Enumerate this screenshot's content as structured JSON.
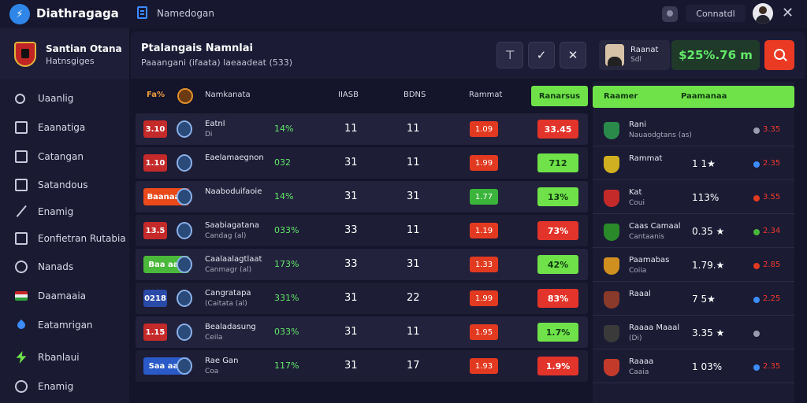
{
  "topbar": {
    "app_title": "Diathragaga",
    "name_label": "Namedogan",
    "connect_label": "Connatdl",
    "close_glyph": "✕"
  },
  "sidebar": {
    "brand_line1": "Santian Otana",
    "brand_line2": "Hatnsgiges",
    "items": [
      {
        "label": "Uaanlig",
        "icon": "search-icon"
      },
      {
        "label": "Eaanatiga",
        "icon": "tv-icon"
      },
      {
        "label": "Catangan",
        "icon": "monitor-icon"
      },
      {
        "label": "Satandous",
        "icon": "bag-icon"
      },
      {
        "label": "Enamig",
        "icon": "pen-icon"
      },
      {
        "label": "Eonfietran Rutabia",
        "icon": "calendar-icon"
      },
      {
        "label": "Nanads",
        "icon": "circle-icon"
      },
      {
        "label": "Daamaaia",
        "icon": "flag-icon"
      },
      {
        "label": "Eatamrigan",
        "icon": "rocket-icon"
      },
      {
        "label": "Rbanlaui",
        "icon": "bolt-icon"
      },
      {
        "label": "Enamig",
        "icon": "person-icon"
      }
    ]
  },
  "header": {
    "title": "Ptalangais Namnlai",
    "subtitle": "Paaangani (ifaata) laeaadeat (533)",
    "tool1": "⊤",
    "tool2": "✓",
    "tool3": "✕",
    "user_name": "Raanat",
    "user_sub": "Sdl",
    "balance": "$25%.76 m"
  },
  "table": {
    "col_rank": "Fa%",
    "col_team": "Namkanata",
    "col_a": "IIASB",
    "col_b": "BDNS",
    "col_c": "Rammat",
    "col_d": "Ranarsus",
    "rows": [
      {
        "chip": "3.10",
        "chip_color": "#c42a2a",
        "team": "Eatnl",
        "team2": "Di",
        "pct": "14%",
        "a": "11",
        "b": "11",
        "odd": "1.09",
        "odd_color": "#e23a20",
        "big": "33.45",
        "big_color": "#e2342a"
      },
      {
        "chip": "1.10",
        "chip_color": "#c42a2a",
        "team": "Eaelamaegnon",
        "team2": "",
        "pct": "032",
        "a": "31",
        "b": "11",
        "odd": "1.99",
        "odd_color": "#e23a20",
        "big": "712",
        "big_color": "#6fe24a"
      },
      {
        "chip": "Baanaan",
        "chip_color": "#ea4a1a",
        "team": "Naaboduifaoie",
        "team2": "",
        "pct": "14%",
        "a": "31",
        "b": "31",
        "odd": "1.77",
        "odd_color": "#3ab43a",
        "big": "13%",
        "big_color": "#6fe24a"
      },
      {
        "chip": "13.5",
        "chip_color": "#c42a2a",
        "team": "Saabiagatana",
        "team2": "Candag (al)",
        "pct": "033%",
        "a": "33",
        "b": "11",
        "odd": "1.19",
        "odd_color": "#e23a20",
        "big": "73%",
        "big_color": "#e2342a"
      },
      {
        "chip": "Baa aan",
        "chip_color": "#4ab83a",
        "team": "Caalaalagtlaat",
        "team2": "Canmagr (al)",
        "pct": "173%",
        "a": "33",
        "b": "31",
        "odd": "1.33",
        "odd_color": "#e23a20",
        "big": "42%",
        "big_color": "#6fe24a"
      },
      {
        "chip": "0218",
        "chip_color": "#2a4aa8",
        "team": "Cangratapa",
        "team2": "(Caitata (al)",
        "pct": "331%",
        "a": "31",
        "b": "22",
        "odd": "1.99",
        "odd_color": "#e23a20",
        "big": "83%",
        "big_color": "#e2342a"
      },
      {
        "chip": "1.15",
        "chip_color": "#c42a2a",
        "team": "Bealadasung",
        "team2": "Ceila",
        "pct": "033%",
        "a": "31",
        "b": "11",
        "odd": "1.95",
        "odd_color": "#e23a20",
        "big": "1.7%",
        "big_color": "#6fe24a"
      },
      {
        "chip": "Saa aan",
        "chip_color": "#2a5ac8",
        "team": "Rae Gan",
        "team2": "Coa",
        "pct": "117%",
        "a": "31",
        "b": "17",
        "odd": "1.93",
        "odd_color": "#e23a20",
        "big": "1.9%",
        "big_color": "#e2342a"
      }
    ]
  },
  "right_panel": {
    "h1": "Raamer",
    "h2": "Paamanaa",
    "rows": [
      {
        "name": "Rani",
        "sub": "Nauaodgtans (as)",
        "val": "",
        "odd": "3.35",
        "dot_color": "#9a9ab0",
        "logo_color": "#2a8a4a"
      },
      {
        "name": "Rammat",
        "sub": "",
        "val": "1 1★",
        "odd": "2.35",
        "dot_color": "#3c8cff",
        "logo_color": "#d0b020"
      },
      {
        "name": "Kat",
        "sub": "Coui",
        "val": "113%",
        "odd": "3.55",
        "dot_color": "#e23a20",
        "logo_color": "#c42a2a"
      },
      {
        "name": "Caas Camaal",
        "sub": "Cantaanis",
        "val": "0.35 ★",
        "odd": "2.34",
        "dot_color": "#4ab83a",
        "logo_color": "#2a8a2a"
      },
      {
        "name": "Paamabas",
        "sub": "Coiia",
        "val": "1.79.★",
        "odd": "2.85",
        "dot_color": "#e23a20",
        "logo_color": "#d09020"
      },
      {
        "name": "Raaal",
        "sub": "",
        "val": "7 5★",
        "odd": "2.25",
        "dot_color": "#3c8cff",
        "logo_color": "#8a3a2a"
      },
      {
        "name": "Raaaa Maaal",
        "sub": "(Di)",
        "val": "3.35 ★",
        "odd": "",
        "dot_color": "#9a9ab0",
        "logo_color": "#3a3a3a"
      },
      {
        "name": "Raaaa",
        "sub": "Caaia",
        "val": "1 03%",
        "odd": "2.35",
        "dot_color": "#3c8cff",
        "logo_color": "#c43a2a"
      }
    ]
  }
}
